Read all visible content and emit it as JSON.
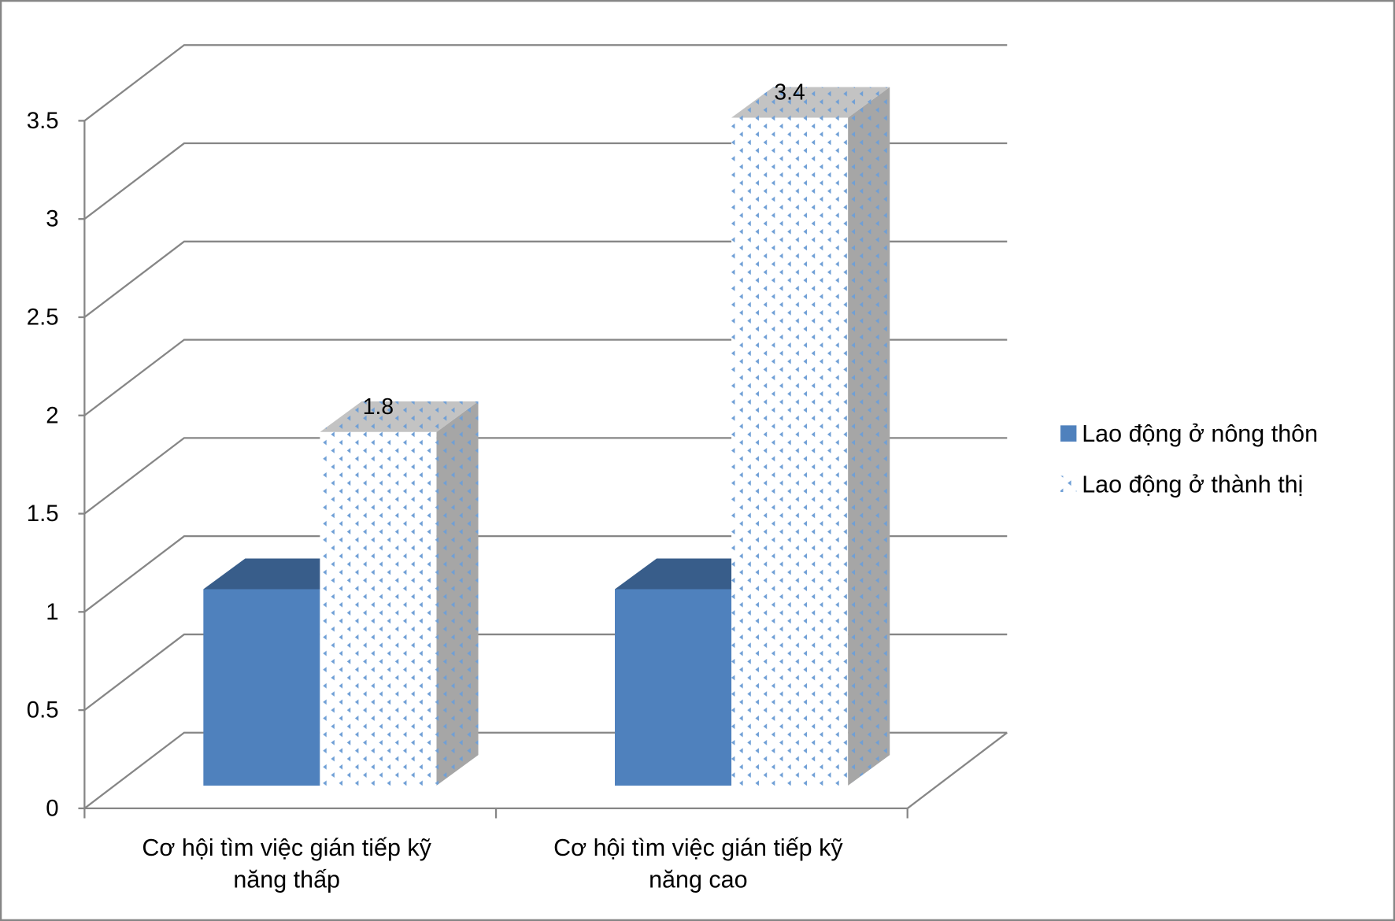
{
  "chart_data": {
    "type": "bar",
    "three_d": true,
    "categories": [
      "Cơ hội tìm việc gián tiếp kỹ năng thấp",
      "Cơ hội tìm việc gián tiếp kỹ năng cao"
    ],
    "series": [
      {
        "name": "Lao động ở nông thôn",
        "values": [
          1,
          1
        ],
        "color": "#4f81bd",
        "top_color": "#385d8a",
        "side_color": "#2c4d75",
        "show_data_labels": false
      },
      {
        "name": "Lao động ở thành thị",
        "values": [
          1.8,
          3.4
        ],
        "color": "#ffffff",
        "top_color": "#c3c3c3",
        "side_color": "#a6a6a6",
        "pattern_color": "#6f9fd6",
        "show_data_labels": true
      }
    ],
    "ylim": [
      0,
      3.5
    ],
    "yticks": [
      "0",
      "0.5",
      "1",
      "1.5",
      "2",
      "2.5",
      "3",
      "3.5"
    ],
    "grid": true,
    "legend": "right"
  },
  "colors": {
    "gridline": "#868686",
    "frame": "#868686",
    "background": "#ffffff",
    "text": "#000000"
  }
}
